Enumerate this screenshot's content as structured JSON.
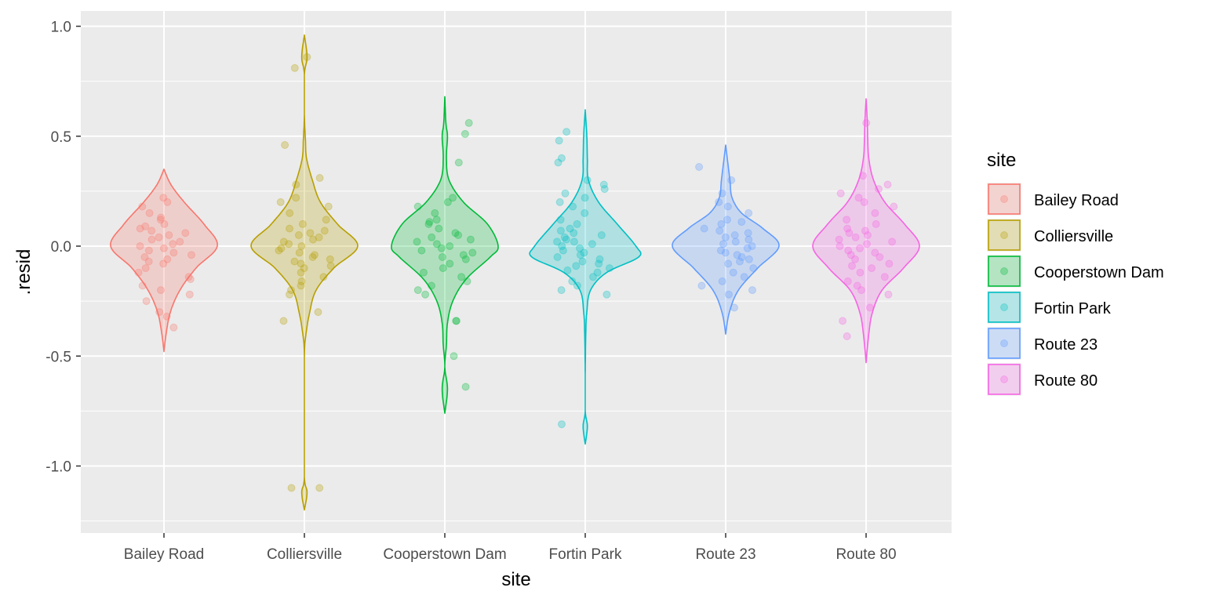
{
  "chart_data": {
    "type": "violin",
    "xlabel": "site",
    "ylabel": ".resid",
    "ylim": [
      -1.3,
      1.05
    ],
    "yticks": [
      -1.0,
      -0.5,
      0.0,
      0.5,
      1.0
    ],
    "ytick_labels": [
      "-1.0",
      "-0.5",
      "0.0",
      "0.5",
      "1.0"
    ],
    "grid": true,
    "legend": {
      "title": "site",
      "position": "right"
    },
    "categories": [
      "Bailey Road",
      "Colliersville",
      "Cooperstown Dam",
      "Fortin Park",
      "Route 23",
      "Route 80"
    ],
    "colors": [
      "#F8766D",
      "#B79F00",
      "#00BA38",
      "#00BFC4",
      "#619CFF",
      "#F564E3"
    ],
    "series": [
      {
        "name": "Bailey Road",
        "profile": [
          [
            -0.48,
            0.0
          ],
          [
            -0.4,
            0.04
          ],
          [
            -0.3,
            0.12
          ],
          [
            -0.2,
            0.3
          ],
          [
            -0.1,
            0.6
          ],
          [
            0.0,
            1.0
          ],
          [
            0.1,
            0.75
          ],
          [
            0.2,
            0.38
          ],
          [
            0.28,
            0.13
          ],
          [
            0.35,
            0.0
          ]
        ],
        "points": [
          0.22,
          0.2,
          0.18,
          0.15,
          0.12,
          0.1,
          0.08,
          0.06,
          0.05,
          0.04,
          0.03,
          0.02,
          0.01,
          0.0,
          -0.01,
          -0.02,
          -0.03,
          -0.05,
          -0.06,
          -0.08,
          -0.1,
          -0.12,
          -0.14,
          -0.15,
          -0.18,
          -0.2,
          -0.22,
          -0.25,
          -0.3,
          -0.32,
          -0.37,
          0.07,
          0.09,
          -0.04,
          0.13,
          -0.07
        ]
      },
      {
        "name": "Colliersville",
        "profile": [
          [
            -1.2,
            0.0
          ],
          [
            -1.12,
            0.05
          ],
          [
            -1.05,
            0.0
          ],
          [
            -0.8,
            0.0
          ],
          [
            -0.5,
            0.0
          ],
          [
            -0.4,
            0.03
          ],
          [
            -0.3,
            0.1
          ],
          [
            -0.2,
            0.22
          ],
          [
            -0.1,
            0.55
          ],
          [
            0.0,
            1.0
          ],
          [
            0.1,
            0.62
          ],
          [
            0.2,
            0.3
          ],
          [
            0.3,
            0.15
          ],
          [
            0.4,
            0.04
          ],
          [
            0.48,
            0.02
          ],
          [
            0.6,
            0.0
          ],
          [
            0.78,
            0.0
          ],
          [
            0.86,
            0.05
          ],
          [
            0.96,
            0.0
          ]
        ],
        "points": [
          0.86,
          0.81,
          0.46,
          0.31,
          0.28,
          0.22,
          0.2,
          0.18,
          0.15,
          0.12,
          0.1,
          0.08,
          0.06,
          0.05,
          0.04,
          0.03,
          0.02,
          0.01,
          0.0,
          -0.01,
          -0.02,
          -0.03,
          -0.04,
          -0.05,
          -0.06,
          -0.07,
          -0.08,
          -0.1,
          -0.12,
          -0.14,
          -0.16,
          -0.18,
          -0.2,
          -0.22,
          -0.3,
          -0.34,
          -1.1,
          -1.1,
          0.07,
          -0.09
        ]
      },
      {
        "name": "Cooperstown Dam",
        "profile": [
          [
            -0.76,
            0.0
          ],
          [
            -0.65,
            0.05
          ],
          [
            -0.55,
            0.0
          ],
          [
            -0.45,
            0.03
          ],
          [
            -0.35,
            0.05
          ],
          [
            -0.25,
            0.15
          ],
          [
            -0.15,
            0.4
          ],
          [
            -0.05,
            0.85
          ],
          [
            0.0,
            1.0
          ],
          [
            0.1,
            0.8
          ],
          [
            0.2,
            0.35
          ],
          [
            0.3,
            0.08
          ],
          [
            0.4,
            0.03
          ],
          [
            0.5,
            0.05
          ],
          [
            0.56,
            0.02
          ],
          [
            0.68,
            0.0
          ]
        ],
        "points": [
          0.56,
          0.51,
          0.38,
          0.22,
          0.2,
          0.18,
          0.15,
          0.12,
          0.1,
          0.08,
          0.06,
          0.05,
          0.04,
          0.03,
          0.02,
          0.01,
          0.0,
          -0.01,
          -0.02,
          -0.03,
          -0.05,
          -0.06,
          -0.08,
          -0.1,
          -0.12,
          -0.14,
          -0.16,
          -0.18,
          -0.2,
          -0.22,
          -0.34,
          -0.34,
          -0.5,
          -0.64,
          0.11,
          -0.04
        ]
      },
      {
        "name": "Fortin Park",
        "profile": [
          [
            -0.9,
            0.0
          ],
          [
            -0.82,
            0.04
          ],
          [
            -0.75,
            0.0
          ],
          [
            -0.6,
            0.0
          ],
          [
            -0.4,
            0.01
          ],
          [
            -0.3,
            0.03
          ],
          [
            -0.2,
            0.1
          ],
          [
            -0.12,
            0.4
          ],
          [
            -0.05,
            1.0
          ],
          [
            0.0,
            0.95
          ],
          [
            0.1,
            0.6
          ],
          [
            0.2,
            0.25
          ],
          [
            0.3,
            0.06
          ],
          [
            0.4,
            0.04
          ],
          [
            0.5,
            0.03
          ],
          [
            0.62,
            0.0
          ]
        ],
        "points": [
          0.52,
          0.48,
          0.4,
          0.38,
          0.3,
          0.28,
          0.26,
          0.24,
          0.22,
          0.2,
          0.18,
          0.15,
          0.12,
          0.1,
          0.08,
          0.06,
          0.05,
          0.04,
          0.03,
          0.02,
          0.01,
          0.0,
          -0.01,
          -0.02,
          -0.03,
          -0.04,
          -0.05,
          -0.06,
          -0.07,
          -0.08,
          -0.09,
          -0.1,
          -0.12,
          -0.14,
          -0.16,
          -0.18,
          -0.2,
          -0.22,
          -0.81,
          0.07,
          -0.11,
          0.02
        ]
      },
      {
        "name": "Route 23",
        "profile": [
          [
            -0.4,
            0.0
          ],
          [
            -0.3,
            0.07
          ],
          [
            -0.2,
            0.24
          ],
          [
            -0.1,
            0.6
          ],
          [
            0.0,
            1.0
          ],
          [
            0.08,
            0.7
          ],
          [
            0.15,
            0.3
          ],
          [
            0.22,
            0.12
          ],
          [
            0.3,
            0.08
          ],
          [
            0.38,
            0.04
          ],
          [
            0.46,
            0.0
          ]
        ],
        "points": [
          0.36,
          0.3,
          0.24,
          0.2,
          0.18,
          0.15,
          0.12,
          0.1,
          0.08,
          0.06,
          0.05,
          0.04,
          0.03,
          0.02,
          0.01,
          0.0,
          -0.01,
          -0.02,
          -0.03,
          -0.04,
          -0.05,
          -0.06,
          -0.08,
          -0.1,
          -0.12,
          -0.14,
          -0.16,
          -0.18,
          -0.2,
          -0.22,
          -0.28,
          0.07,
          -0.07,
          0.11
        ]
      },
      {
        "name": "Route 80",
        "profile": [
          [
            -0.53,
            0.0
          ],
          [
            -0.4,
            0.05
          ],
          [
            -0.3,
            0.12
          ],
          [
            -0.2,
            0.3
          ],
          [
            -0.1,
            0.7
          ],
          [
            0.0,
            1.0
          ],
          [
            0.1,
            0.72
          ],
          [
            0.2,
            0.35
          ],
          [
            0.3,
            0.14
          ],
          [
            0.4,
            0.05
          ],
          [
            0.5,
            0.03
          ],
          [
            0.58,
            0.02
          ],
          [
            0.67,
            0.0
          ]
        ],
        "points": [
          0.56,
          0.32,
          0.28,
          0.26,
          0.24,
          0.22,
          0.2,
          0.18,
          0.15,
          0.12,
          0.1,
          0.08,
          0.06,
          0.05,
          0.04,
          0.03,
          0.02,
          0.01,
          0.0,
          -0.01,
          -0.02,
          -0.03,
          -0.04,
          -0.05,
          -0.06,
          -0.08,
          -0.1,
          -0.12,
          -0.14,
          -0.16,
          -0.18,
          -0.2,
          -0.22,
          -0.28,
          -0.34,
          -0.41,
          0.07,
          -0.09
        ]
      }
    ]
  }
}
